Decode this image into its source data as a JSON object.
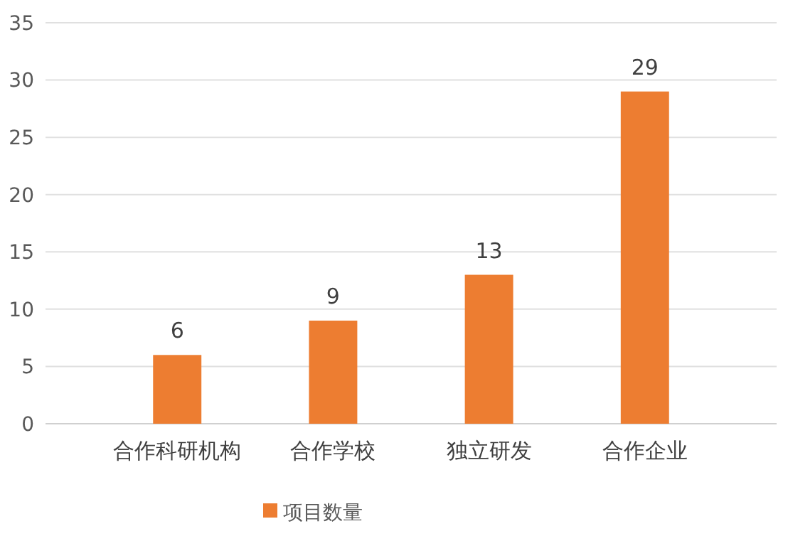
{
  "chart_data": {
    "type": "bar",
    "categories": [
      "合作科研机构",
      "合作学校",
      "独立研发",
      "合作企业"
    ],
    "series": [
      {
        "name": "项目数量",
        "color": "#ed7d31",
        "values": [
          6,
          9,
          13,
          29
        ]
      }
    ],
    "ylim": [
      0,
      35
    ],
    "yticks": [
      0,
      5,
      10,
      15,
      20,
      25,
      30,
      35
    ],
    "grid": "y",
    "legend": "bottom",
    "data_labels": true
  }
}
